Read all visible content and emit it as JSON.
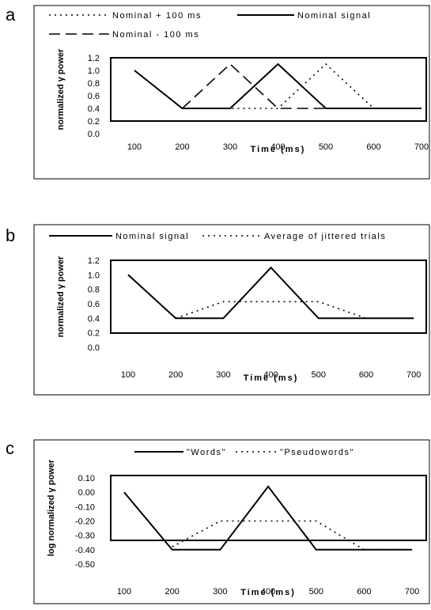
{
  "panels": [
    {
      "label": "a"
    },
    {
      "label": "b"
    },
    {
      "label": "c"
    }
  ],
  "chart_data": [
    {
      "type": "line",
      "title": "",
      "xlabel": "Time (ms)",
      "ylabel": "normalized γ power",
      "x": [
        100,
        200,
        300,
        400,
        500,
        600,
        700
      ],
      "xlim": [
        100,
        700
      ],
      "ylim": [
        0.0,
        1.2
      ],
      "yticks": [
        "0.0",
        "0.2",
        "0.4",
        "0.6",
        "0.8",
        "1.0",
        "1.2"
      ],
      "xticks": [
        "100",
        "200",
        "300",
        "400",
        "500",
        "600",
        "700"
      ],
      "grid": false,
      "legend_position": "top",
      "series": [
        {
          "name": "Nominal + 100 ms",
          "style": "dotted",
          "points": [
            [
              200,
              0.4
            ],
            [
              300,
              0.4
            ],
            [
              400,
              0.4
            ],
            [
              500,
              1.1
            ],
            [
              600,
              0.4
            ]
          ]
        },
        {
          "name": "Nominal signal",
          "style": "solid",
          "points": [
            [
              100,
              1.0
            ],
            [
              200,
              0.4
            ],
            [
              300,
              0.4
            ],
            [
              400,
              1.1
            ],
            [
              500,
              0.4
            ],
            [
              600,
              0.4
            ],
            [
              700,
              0.4
            ]
          ]
        },
        {
          "name": "Nominal - 100 ms",
          "style": "dashed",
          "points": [
            [
              200,
              0.4
            ],
            [
              300,
              1.1
            ],
            [
              400,
              0.4
            ],
            [
              500,
              0.4
            ]
          ]
        }
      ]
    },
    {
      "type": "line",
      "title": "",
      "xlabel": "Time (ms)",
      "ylabel": "normalized γ power",
      "x": [
        100,
        200,
        300,
        400,
        500,
        600,
        700
      ],
      "xlim": [
        100,
        700
      ],
      "ylim": [
        0.0,
        1.2
      ],
      "yticks": [
        "0.0",
        "0.2",
        "0.4",
        "0.6",
        "0.8",
        "1.0",
        "1.2"
      ],
      "xticks": [
        "100",
        "200",
        "300",
        "400",
        "500",
        "600",
        "700"
      ],
      "grid": false,
      "legend_position": "top",
      "series": [
        {
          "name": "Nominal signal",
          "style": "solid",
          "points": [
            [
              100,
              1.0
            ],
            [
              200,
              0.4
            ],
            [
              300,
              0.4
            ],
            [
              400,
              1.1
            ],
            [
              500,
              0.4
            ],
            [
              600,
              0.4
            ],
            [
              700,
              0.4
            ]
          ]
        },
        {
          "name": "Average of jittered trials",
          "style": "dotted",
          "points": [
            [
              200,
              0.4
            ],
            [
              300,
              0.63
            ],
            [
              400,
              0.63
            ],
            [
              500,
              0.63
            ],
            [
              600,
              0.4
            ],
            [
              700,
              0.4
            ]
          ]
        }
      ]
    },
    {
      "type": "line",
      "title": "",
      "xlabel": "Time (ms)",
      "ylabel": "log normalized γ power",
      "x": [
        100,
        200,
        300,
        400,
        500,
        600,
        700
      ],
      "xlim": [
        100,
        700
      ],
      "ylim": [
        -0.5,
        0.1
      ],
      "yticks": [
        "-0.50",
        "-0.40",
        "-0.30",
        "-0.20",
        "-0.10",
        "0.00",
        "0.10"
      ],
      "xticks": [
        "100",
        "200",
        "300",
        "400",
        "500",
        "600",
        "700"
      ],
      "grid": false,
      "legend_position": "top",
      "series": [
        {
          "name": "\"Words\"",
          "style": "solid",
          "points": [
            [
              100,
              0.0
            ],
            [
              200,
              -0.4
            ],
            [
              300,
              -0.4
            ],
            [
              400,
              0.04
            ],
            [
              500,
              -0.4
            ],
            [
              600,
              -0.4
            ],
            [
              700,
              -0.4
            ]
          ]
        },
        {
          "name": "\"Pseudowords\"",
          "style": "dotted",
          "points": [
            [
              200,
              -0.38
            ],
            [
              300,
              -0.2
            ],
            [
              400,
              -0.2
            ],
            [
              500,
              -0.2
            ],
            [
              600,
              -0.4
            ],
            [
              700,
              -0.4
            ]
          ]
        }
      ]
    }
  ]
}
